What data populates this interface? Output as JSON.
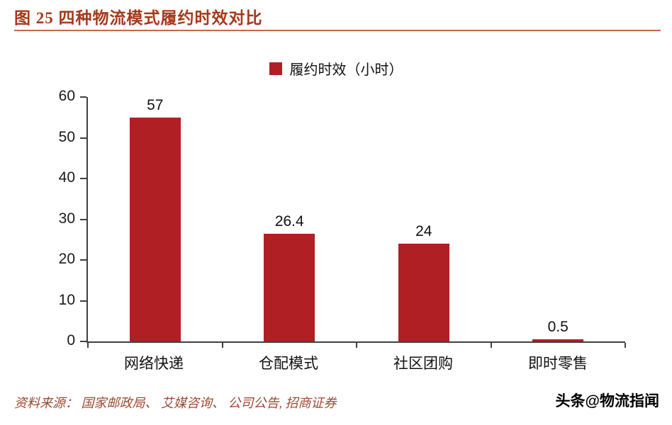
{
  "header": {
    "title": "图 25 四种物流模式履约时效对比"
  },
  "chart_data": {
    "type": "bar",
    "title": "图 25 四种物流模式履约时效对比",
    "legend": "履约时效（小时）",
    "legend_position": "top-center",
    "categories": [
      "网络快递",
      "仓配模式",
      "社区团购",
      "即时零售"
    ],
    "values": [
      57,
      26.4,
      24,
      0.5
    ],
    "value_labels": [
      "57",
      "26.4",
      "24",
      "0.5"
    ],
    "xlabel": "",
    "ylabel": "",
    "ylim": [
      0,
      60
    ],
    "yticks": [
      0,
      10,
      20,
      30,
      40,
      50,
      60
    ],
    "grid": false
  },
  "footer": {
    "source": "资料来源： 国家邮政局、 艾媒咨询、 公司公告, 招商证券",
    "watermark": "头条@物流指闻"
  },
  "colors": {
    "bar": "#b01f24",
    "title": "#a33a1c",
    "rule": "#bf6b45",
    "source": "#9c4a32",
    "axis": "#404040"
  }
}
